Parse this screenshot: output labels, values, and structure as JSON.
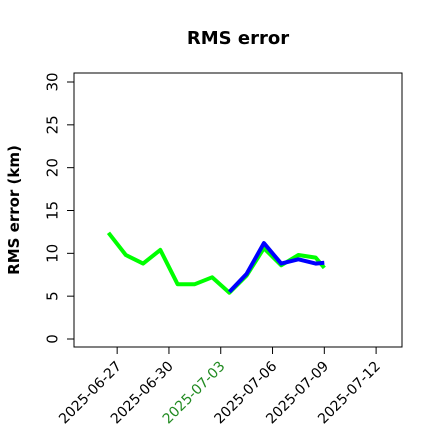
{
  "chart_data": {
    "type": "line",
    "title": "RMS error",
    "xlabel": "",
    "ylabel": "RMS error (km)",
    "x_tick_labels": [
      "2025-06-27",
      "2025-06-30",
      "2025-07-03",
      "2025-07-06",
      "2025-07-09",
      "2025-07-12"
    ],
    "highlighted_tick": "2025-07-03",
    "highlight_color": "#228b22",
    "xlim": [
      "2025-06-24T12:00",
      "2025-07-13T12:00"
    ],
    "ylim": [
      0,
      30
    ],
    "y_ticks": [
      0,
      5,
      10,
      15,
      20,
      25,
      30
    ],
    "grid": false,
    "legend": "none",
    "series": [
      {
        "color": "#00ff00",
        "points": [
          {
            "x": "2025-06-26T12:00",
            "y": 12.4
          },
          {
            "x": "2025-06-27T12:00",
            "y": 9.8
          },
          {
            "x": "2025-06-28T12:00",
            "y": 8.8
          },
          {
            "x": "2025-06-29T12:00",
            "y": 10.4
          },
          {
            "x": "2025-06-30T12:00",
            "y": 6.4
          },
          {
            "x": "2025-07-01T12:00",
            "y": 6.4
          },
          {
            "x": "2025-07-02T12:00",
            "y": 7.2
          },
          {
            "x": "2025-07-03T12:00",
            "y": 5.4
          },
          {
            "x": "2025-07-04T12:00",
            "y": 7.4
          },
          {
            "x": "2025-07-05T12:00",
            "y": 10.6
          },
          {
            "x": "2025-07-06T12:00",
            "y": 8.6
          },
          {
            "x": "2025-07-07T12:00",
            "y": 9.8
          },
          {
            "x": "2025-07-08T12:00",
            "y": 9.5
          },
          {
            "x": "2025-07-09T00:00",
            "y": 8.3
          }
        ]
      },
      {
        "color": "#0000ff",
        "points": [
          {
            "x": "2025-07-03T12:00",
            "y": 5.5
          },
          {
            "x": "2025-07-04T12:00",
            "y": 7.6
          },
          {
            "x": "2025-07-05T12:00",
            "y": 11.2
          },
          {
            "x": "2025-07-06T12:00",
            "y": 8.8
          },
          {
            "x": "2025-07-07T12:00",
            "y": 9.3
          },
          {
            "x": "2025-07-08T12:00",
            "y": 8.8
          },
          {
            "x": "2025-07-09T00:00",
            "y": 8.9
          }
        ]
      }
    ]
  }
}
